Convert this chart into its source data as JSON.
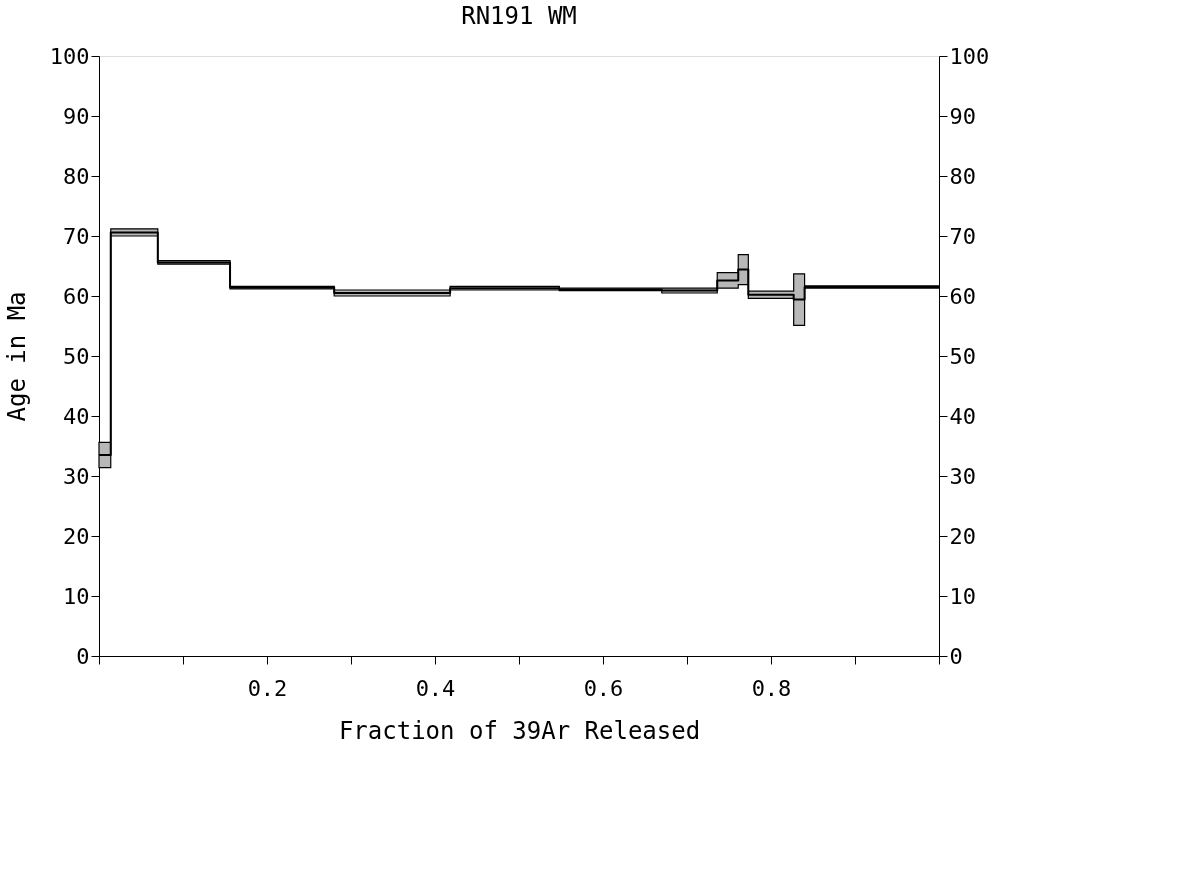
{
  "chart_data": {
    "type": "step",
    "title": "RN191 WM",
    "xlabel": "Fraction of 39Ar Released",
    "ylabel": "Age in Ma",
    "x": [
      0,
      0.014,
      0.07,
      0.156,
      0.28,
      0.418,
      0.548,
      0.67,
      0.736,
      0.761,
      0.773,
      0.827,
      0.84,
      1.0
    ],
    "series": [
      {
        "color": "#000000",
        "values": [
          33.5,
          70.6,
          65.6,
          61.4,
          60.5,
          61.3,
          61.1,
          60.9,
          62.6,
          64.4,
          60.2,
          59.4,
          61.5,
          61.5
        ],
        "lower": [
          31.4,
          70.0,
          65.3,
          61.2,
          60.0,
          61.0,
          60.9,
          60.5,
          61.3,
          61.9,
          59.6,
          55.1,
          61.3,
          61.3
        ],
        "upper": [
          35.6,
          71.2,
          65.9,
          61.6,
          61.0,
          61.6,
          61.3,
          61.3,
          63.9,
          66.9,
          60.8,
          63.7,
          61.7,
          61.7
        ]
      }
    ],
    "xlim": [
      0,
      1.0
    ],
    "xticks": [
      {
        "value": 0,
        "label": null
      },
      {
        "value": 0.1,
        "label": null
      },
      0.2,
      {
        "value": 0.3,
        "label": null
      },
      0.4,
      {
        "value": 0.5,
        "label": null
      },
      0.6,
      {
        "value": 0.7,
        "label": null
      },
      0.8,
      {
        "value": 0.9,
        "label": null
      },
      {
        "value": 1.0,
        "label": null
      }
    ],
    "ylim": [
      0,
      100
    ],
    "yticks": [
      0,
      10,
      20,
      30,
      40,
      50,
      60,
      70,
      80,
      90,
      100
    ],
    "y2lim": [
      0,
      100
    ],
    "y2ticks": [
      0,
      10,
      20,
      30,
      40,
      50,
      60,
      70,
      80,
      90,
      100
    ],
    "grid": false,
    "line_style": "solid"
  }
}
